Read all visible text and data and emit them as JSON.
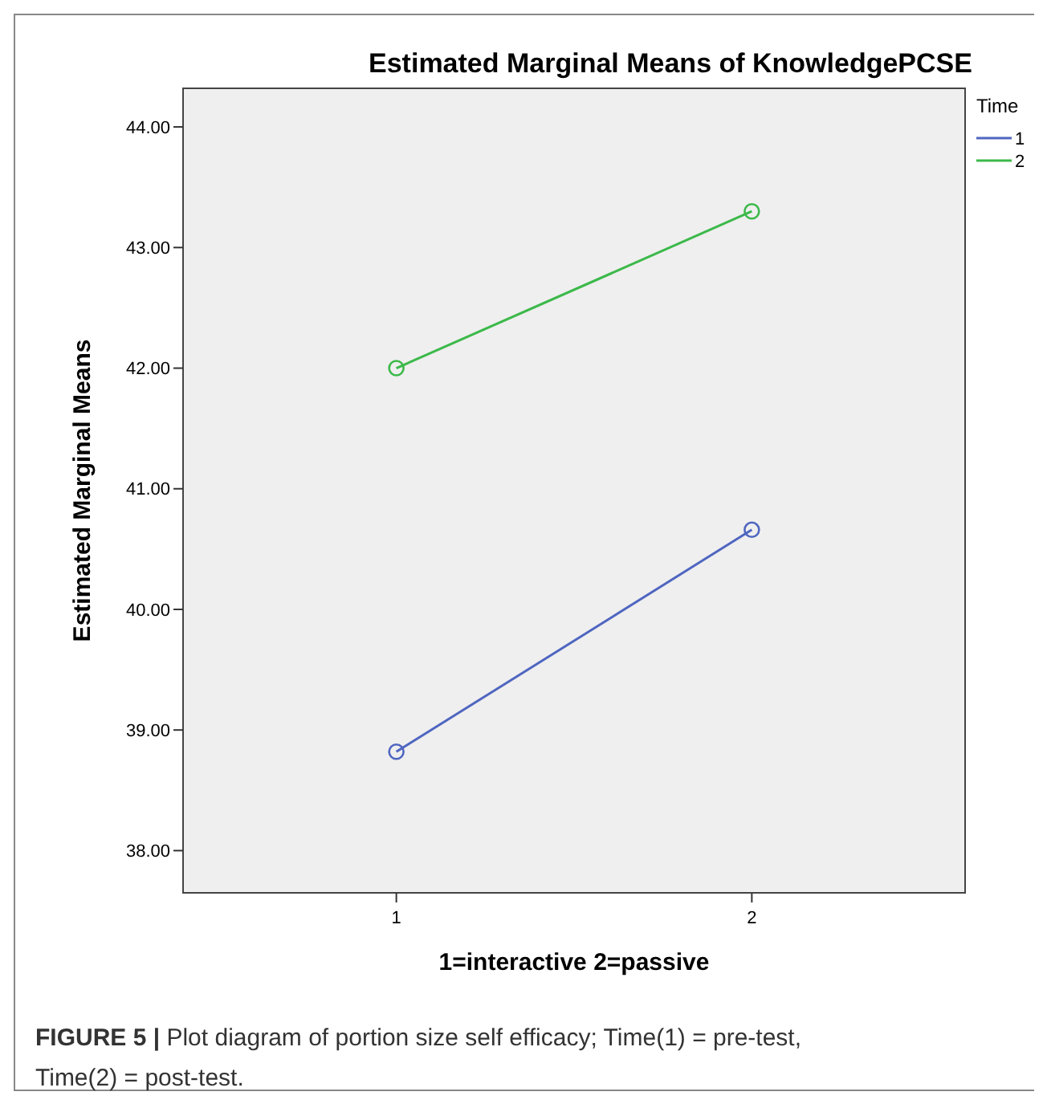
{
  "chart_data": {
    "type": "line",
    "title": "Estimated Marginal Means of KnowledgePCSE",
    "xlabel": "1=interactive 2=passive",
    "ylabel": "Estimated Marginal Means",
    "legend_title": "Time",
    "categories": [
      "1",
      "2"
    ],
    "series": [
      {
        "name": "1",
        "color": "#4f66c0",
        "values": [
          38.82,
          40.66
        ]
      },
      {
        "name": "2",
        "color": "#3cb94a",
        "values": [
          42.0,
          43.3
        ]
      }
    ],
    "ylim": [
      37.65,
      44.32
    ],
    "yticks": [
      {
        "value": 38,
        "label": "38.00"
      },
      {
        "value": 39,
        "label": "39.00"
      },
      {
        "value": 40,
        "label": "40.00"
      },
      {
        "value": 41,
        "label": "41.00"
      },
      {
        "value": 42,
        "label": "42.00"
      },
      {
        "value": 43,
        "label": "43.00"
      },
      {
        "value": 44,
        "label": "44.00"
      }
    ],
    "grid": false,
    "legend": "top right",
    "marker": "circle",
    "line_style": "solid",
    "annotations": [
      "FIGURE 5 | Plot diagram of portion size self efficacy; Time(1) = pre-test, Time(2) = post-test."
    ]
  }
}
